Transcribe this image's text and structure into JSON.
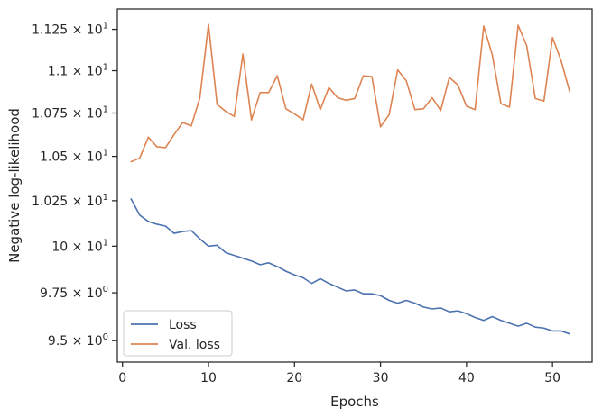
{
  "chart_data": {
    "type": "line",
    "xlabel": "Epochs",
    "ylabel": "Negative log-likelihood",
    "xlim": [
      -0.6,
      54.6
    ],
    "ylim": [
      9.39,
      11.375
    ],
    "y_scale": "log",
    "grid": false,
    "legend_position": "lower-left",
    "x_ticks": [
      {
        "value": 0,
        "label": "0"
      },
      {
        "value": 10,
        "label": "10"
      },
      {
        "value": 20,
        "label": "20"
      },
      {
        "value": 30,
        "label": "30"
      },
      {
        "value": 40,
        "label": "40"
      },
      {
        "value": 50,
        "label": "50"
      }
    ],
    "y_ticks": [
      {
        "value": 9.5,
        "mantissa": "9.5",
        "exponent": "0"
      },
      {
        "value": 9.75,
        "mantissa": "9.75",
        "exponent": "0"
      },
      {
        "value": 10,
        "mantissa": "10",
        "exponent": "1"
      },
      {
        "value": 10.25,
        "mantissa": "1.025",
        "exponent": "1"
      },
      {
        "value": 10.5,
        "mantissa": "1.05",
        "exponent": "1"
      },
      {
        "value": 10.75,
        "mantissa": "1.075",
        "exponent": "1"
      },
      {
        "value": 11.0,
        "mantissa": "1.1",
        "exponent": "1"
      },
      {
        "value": 11.25,
        "mantissa": "1.125",
        "exponent": "1"
      }
    ],
    "x": [
      1,
      2,
      3,
      4,
      5,
      6,
      7,
      8,
      9,
      10,
      11,
      12,
      13,
      14,
      15,
      16,
      17,
      18,
      19,
      20,
      21,
      22,
      23,
      24,
      25,
      26,
      27,
      28,
      29,
      30,
      31,
      32,
      33,
      34,
      35,
      36,
      37,
      38,
      39,
      40,
      41,
      42,
      43,
      44,
      45,
      46,
      47,
      48,
      49,
      50,
      51,
      52
    ],
    "series": [
      {
        "name": "Loss",
        "color": "#4c72b0",
        "values": [
          10.26,
          10.17,
          10.135,
          10.12,
          10.11,
          10.07,
          10.08,
          10.085,
          10.04,
          10.0,
          10.005,
          9.965,
          9.95,
          9.935,
          9.92,
          9.9,
          9.91,
          9.89,
          9.865,
          9.845,
          9.83,
          9.8,
          9.825,
          9.8,
          9.78,
          9.76,
          9.765,
          9.745,
          9.745,
          9.735,
          9.71,
          9.695,
          9.71,
          9.695,
          9.675,
          9.665,
          9.67,
          9.65,
          9.655,
          9.64,
          9.62,
          9.605,
          9.625,
          9.605,
          9.59,
          9.575,
          9.59,
          9.57,
          9.565,
          9.55,
          9.55,
          9.535
        ]
      },
      {
        "name": "Val. loss",
        "color": "#dd8452",
        "values": [
          10.47,
          10.49,
          10.61,
          10.555,
          10.55,
          10.625,
          10.695,
          10.675,
          10.84,
          11.28,
          10.8,
          10.76,
          10.73,
          11.1,
          10.71,
          10.87,
          10.87,
          10.97,
          10.775,
          10.745,
          10.71,
          10.92,
          10.77,
          10.9,
          10.84,
          10.825,
          10.835,
          10.97,
          10.965,
          10.67,
          10.74,
          11.005,
          10.94,
          10.77,
          10.775,
          10.84,
          10.765,
          10.96,
          10.915,
          10.79,
          10.77,
          11.27,
          11.095,
          10.805,
          10.785,
          11.275,
          11.15,
          10.835,
          10.82,
          11.2,
          11.06,
          10.875
        ]
      }
    ]
  }
}
